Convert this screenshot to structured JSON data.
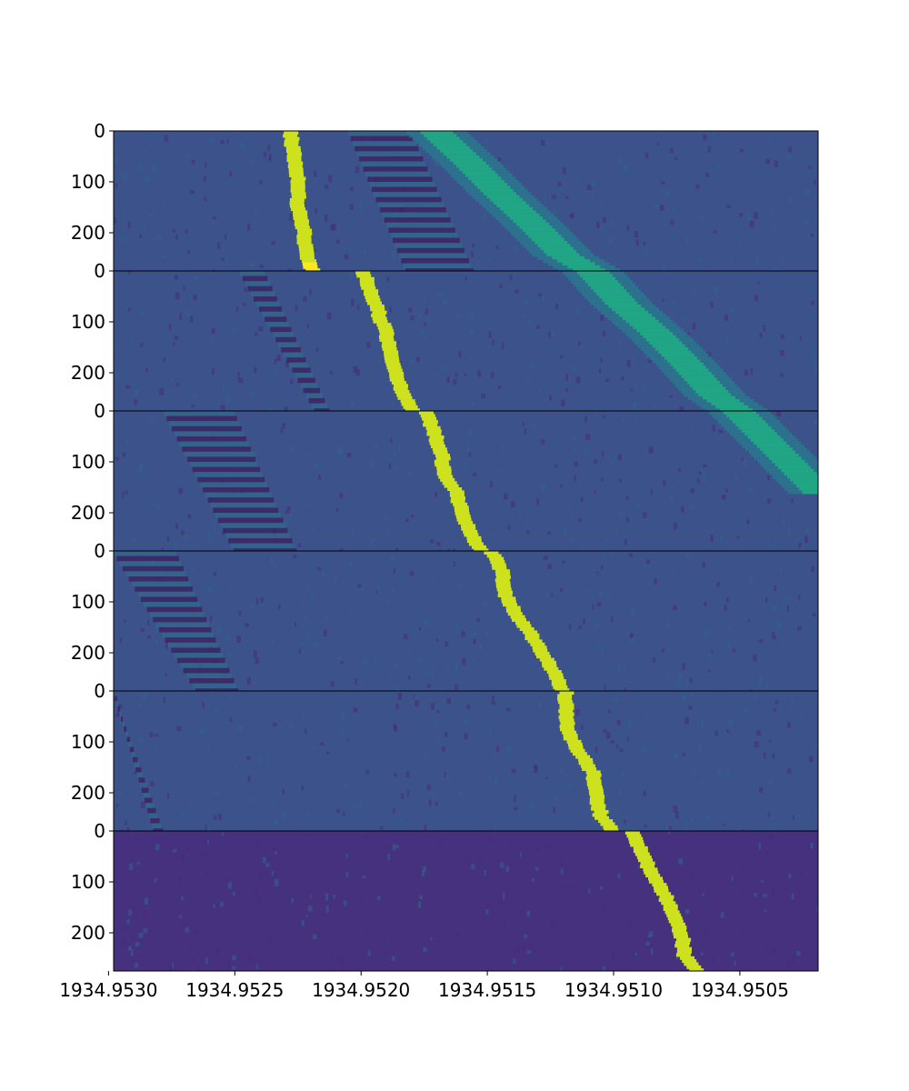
{
  "chart_data": {
    "type": "heatmap",
    "title": "",
    "xlabel": "",
    "ylabel": "",
    "colormap": "viridis",
    "colors": {
      "background": "#3b528b",
      "trace": "#cde11d",
      "trace_peak": "#fde725",
      "diagonal": "#21a685",
      "dark_band": "#3e1f5a",
      "light_band": "#31688e",
      "last_panel_background": "#46317e",
      "separator": "#000000"
    },
    "xlim": [
      1934.95298,
      1934.95019
    ],
    "x_ticks": [
      "1934.9530",
      "1934.9525",
      "1934.9520",
      "1934.9515",
      "1934.9510",
      "1934.9505"
    ],
    "x_tick_values": [
      1934.953,
      1934.9525,
      1934.952,
      1934.9515,
      1934.951,
      1934.9505
    ],
    "y_ticks": [
      "0",
      "100",
      "200"
    ],
    "y_tick_values": [
      0,
      100,
      200
    ],
    "panels": [
      {
        "row_range": [
          0,
          275
        ],
        "bright_trace": [
          [
            0,
            1934.95228
          ],
          [
            30,
            1934.95227
          ],
          [
            60,
            1934.95226
          ],
          [
            100,
            1934.95225
          ],
          [
            140,
            1934.95225
          ],
          [
            180,
            1934.95223
          ],
          [
            220,
            1934.95222
          ],
          [
            250,
            1934.95221
          ],
          [
            275,
            1934.95219
          ]
        ],
        "diagonal_trace": [
          [
            0,
            1934.9517
          ],
          [
            60,
            1934.95157
          ],
          [
            120,
            1934.95145
          ],
          [
            180,
            1934.95132
          ],
          [
            240,
            1934.9512
          ],
          [
            275,
            1934.95108
          ]
        ],
        "band_start": [
          1934.95205,
          1934.9518
        ],
        "band_end": [
          1934.95182,
          1934.95155
        ]
      },
      {
        "row_range": [
          0,
          275
        ],
        "bright_trace": [
          [
            0,
            1934.95199
          ],
          [
            40,
            1934.95196
          ],
          [
            80,
            1934.95193
          ],
          [
            120,
            1934.9519
          ],
          [
            160,
            1934.95188
          ],
          [
            200,
            1934.95186
          ],
          [
            240,
            1934.95183
          ],
          [
            275,
            1934.95179
          ]
        ],
        "diagonal_trace": [
          [
            0,
            1934.95108
          ],
          [
            60,
            1934.95097
          ],
          [
            120,
            1934.95083
          ],
          [
            180,
            1934.95071
          ],
          [
            240,
            1934.9506
          ],
          [
            275,
            1934.9505
          ]
        ],
        "band_start": [
          1934.95238,
          1934.95248
        ],
        "band_end": [
          1934.95212,
          1934.95218
        ]
      },
      {
        "row_range": [
          0,
          275
        ],
        "bright_trace": [
          [
            0,
            1934.95174
          ],
          [
            40,
            1934.95171
          ],
          [
            80,
            1934.95168
          ],
          [
            120,
            1934.95167
          ],
          [
            160,
            1934.95162
          ],
          [
            200,
            1934.9516
          ],
          [
            240,
            1934.95156
          ],
          [
            275,
            1934.95152
          ]
        ],
        "diagonal_trace": [
          [
            0,
            1934.9505
          ],
          [
            60,
            1934.95038
          ],
          [
            120,
            1934.95026
          ],
          [
            160,
            1934.95018
          ]
        ],
        "band_start": [
          1934.9525,
          1934.95278
        ],
        "band_end": [
          1934.95225,
          1934.9525
        ]
      },
      {
        "row_range": [
          0,
          275
        ],
        "bright_trace": [
          [
            0,
            1934.95148
          ],
          [
            40,
            1934.95144
          ],
          [
            80,
            1934.95143
          ],
          [
            120,
            1934.95139
          ],
          [
            160,
            1934.95133
          ],
          [
            200,
            1934.95128
          ],
          [
            240,
            1934.95123
          ],
          [
            275,
            1934.9512
          ]
        ],
        "diagonal_trace": [],
        "band_start": [
          1934.95273,
          1934.95298
        ],
        "band_end": [
          1934.95248,
          1934.95265
        ]
      },
      {
        "row_range": [
          0,
          275
        ],
        "bright_trace": [
          [
            0,
            1934.95119
          ],
          [
            40,
            1934.95119
          ],
          [
            80,
            1934.95118
          ],
          [
            120,
            1934.95113
          ],
          [
            160,
            1934.95108
          ],
          [
            200,
            1934.95107
          ],
          [
            240,
            1934.95105
          ],
          [
            275,
            1934.951
          ]
        ],
        "diagonal_trace": [],
        "band_start": [
          1934.95298,
          1934.95298
        ],
        "band_end": [
          1934.95278,
          1934.95282
        ]
      },
      {
        "row_range": [
          0,
          275
        ],
        "bright_trace": [
          [
            0,
            1934.95092
          ],
          [
            40,
            1934.95089
          ],
          [
            80,
            1934.95085
          ],
          [
            120,
            1934.9508
          ],
          [
            160,
            1934.95076
          ],
          [
            200,
            1934.95073
          ],
          [
            240,
            1934.95072
          ],
          [
            275,
            1934.95066
          ]
        ],
        "diagonal_trace": [],
        "band_start": null,
        "band_end": null
      }
    ]
  }
}
